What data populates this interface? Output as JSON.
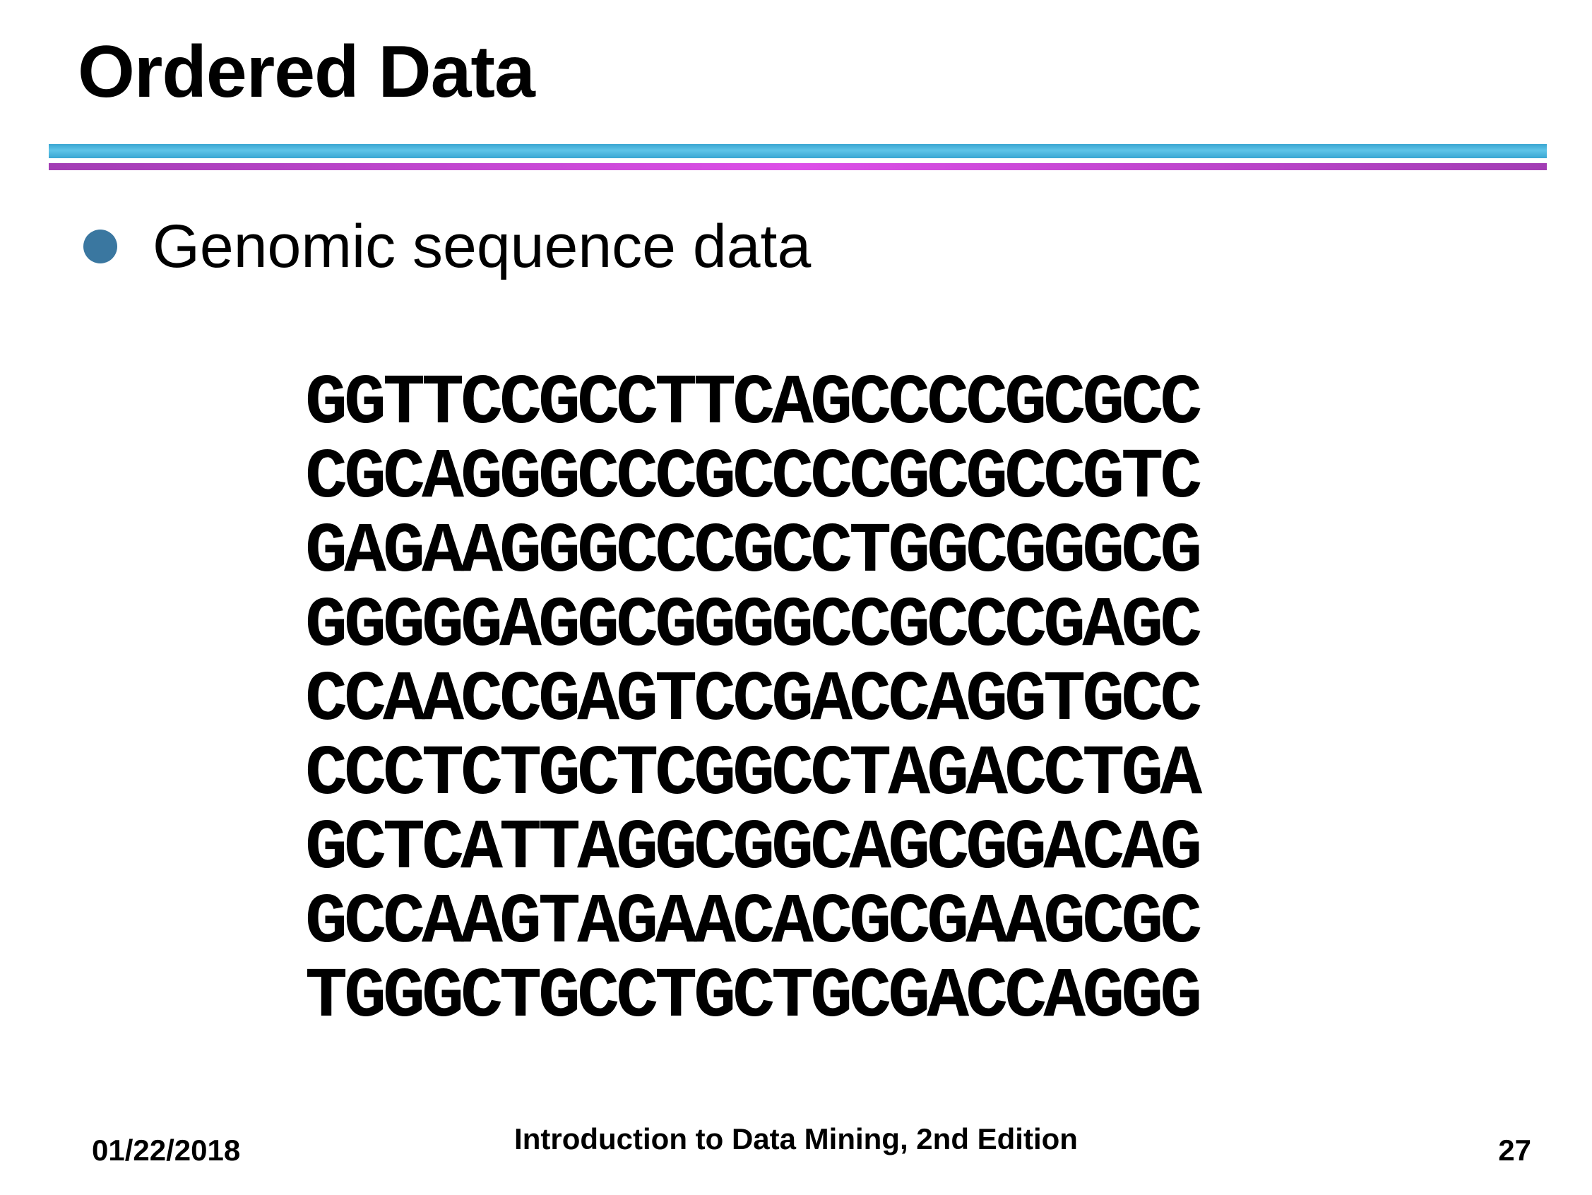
{
  "slide": {
    "title": "Ordered Data",
    "bullet": "Genomic sequence data",
    "sequences": [
      "GGTTCCGCCTTCAGCCCCGCGCC",
      "CGCAGGGCCCGCCCCGCGCCGTC",
      "GAGAAGGGCCCGCCTGGCGGGCG",
      "GGGGGAGGCGGGGCCGCCCGAGC",
      "CCAACCGAGTCCGACCAGGTGCC",
      "CCCTCTGCTCGGCCTAGACCTGA",
      "GCTCATTAGGCGGCAGCGGACAG",
      "GCCAAGTAGAACACGCGAAGCGC",
      "TGGGCTGCCTGCTGCGACCAGGG"
    ]
  },
  "footer": {
    "date": "01/22/2018",
    "book": "Introduction to Data Mining, 2nd Edition",
    "page": "27"
  },
  "colors": {
    "bullet": "#3a77a0",
    "rule_top": "#5fc4e8",
    "rule_bottom": "#dd4fe8"
  },
  "icons": {
    "bullet": "filled-circle"
  }
}
